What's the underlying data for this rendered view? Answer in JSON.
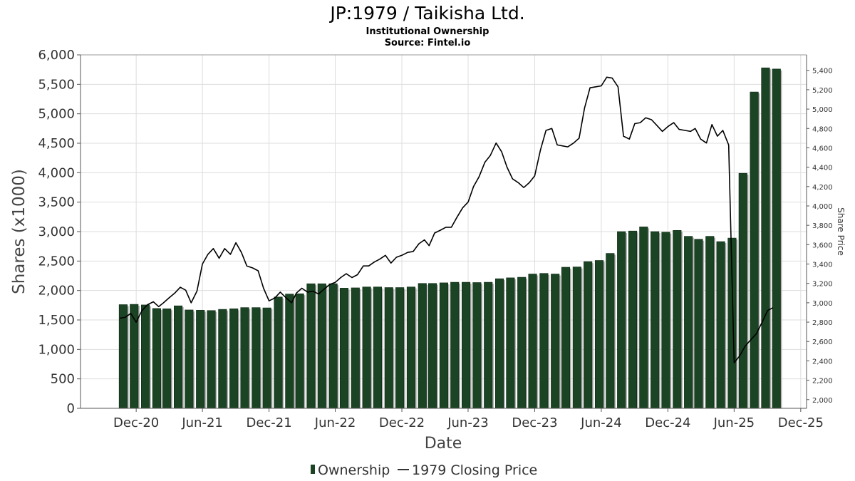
{
  "chart_data": {
    "type": "bar",
    "title": "JP:1979 / Taikisha Ltd.",
    "subtitle_lines": [
      "Institutional Ownership",
      "Source: Fintel.io"
    ],
    "xlabel": "Date",
    "ylabel": "Shares (x1000)",
    "y2label": "Share Price",
    "x_ticks": [
      "Dec-20",
      "Jun-21",
      "Dec-21",
      "Jun-22",
      "Dec-22",
      "Jun-23",
      "Dec-23",
      "Jun-24",
      "Dec-24",
      "Jun-25",
      "Dec-25"
    ],
    "y_ticks": [
      "0",
      "500",
      "1,000",
      "1,500",
      "2,000",
      "2,500",
      "3,000",
      "3,500",
      "4,000",
      "4,500",
      "5,000",
      "5,500",
      "6,000"
    ],
    "y2_ticks": [
      "2,000",
      "2,200",
      "2,400",
      "2,600",
      "2,800",
      "3,000",
      "3,200",
      "3,400",
      "3,600",
      "3,800",
      "4,000",
      "4,200",
      "4,400",
      "4,600",
      "4,800",
      "5,000",
      "5,200",
      "5,400"
    ],
    "ylim": [
      0,
      6000
    ],
    "y2lim": [
      1910,
      5560
    ],
    "grid": true,
    "legend_position": "bottom-center",
    "colors": {
      "bar": "#1a4423",
      "bar_edge": "#0c2613",
      "bar_shadow": "#b3b3b3",
      "line": "#000000",
      "grid": "#dddddd"
    },
    "legend": [
      {
        "label": "Ownership",
        "marker": "bar"
      },
      {
        "label": "1979 Closing Price",
        "marker": "line"
      }
    ],
    "series": [
      {
        "name": "Ownership",
        "kind": "bar",
        "axis": "left",
        "x": [
          "2020-10-31",
          "2020-11-30",
          "2020-12-31",
          "2021-01-31",
          "2021-02-28",
          "2021-03-31",
          "2021-04-30",
          "2021-05-31",
          "2021-06-30",
          "2021-07-31",
          "2021-08-31",
          "2021-09-30",
          "2021-10-31",
          "2021-11-30",
          "2021-12-31",
          "2022-01-31",
          "2022-02-28",
          "2022-03-31",
          "2022-04-30",
          "2022-05-31",
          "2022-06-30",
          "2022-07-31",
          "2022-08-31",
          "2022-09-30",
          "2022-10-31",
          "2022-11-30",
          "2022-12-31",
          "2023-01-31",
          "2023-02-28",
          "2023-03-31",
          "2023-04-30",
          "2023-05-31",
          "2023-06-30",
          "2023-07-31",
          "2023-08-31",
          "2023-09-30",
          "2023-10-31",
          "2023-11-30",
          "2023-12-31",
          "2024-01-31",
          "2024-02-29",
          "2024-03-31",
          "2024-04-30",
          "2024-05-31",
          "2024-06-30",
          "2024-07-31",
          "2024-08-31",
          "2024-09-30",
          "2024-10-31",
          "2024-11-30",
          "2024-12-31",
          "2025-01-31",
          "2025-02-28",
          "2025-03-31",
          "2025-04-30",
          "2025-05-31",
          "2025-06-30",
          "2025-07-31",
          "2025-08-31",
          "2025-09-30"
        ],
        "values": [
          1760,
          1765,
          1755,
          1695,
          1690,
          1740,
          1670,
          1665,
          1660,
          1680,
          1690,
          1710,
          1710,
          1705,
          1890,
          1940,
          1945,
          2115,
          2115,
          2115,
          2040,
          2045,
          2060,
          2060,
          2050,
          2050,
          2060,
          2120,
          2120,
          2130,
          2140,
          2140,
          2135,
          2140,
          2200,
          2215,
          2225,
          2280,
          2290,
          2280,
          2395,
          2400,
          2490,
          2510,
          2630,
          3000,
          3010,
          3080,
          3000,
          2990,
          3020,
          2920,
          2870,
          2920,
          2830,
          2890,
          3990,
          5370,
          5780,
          5760
        ]
      },
      {
        "name": "1979 Closing Price",
        "kind": "line",
        "axis": "right",
        "x": [
          "2020-10-31",
          "2020-11-15",
          "2020-11-30",
          "2020-12-15",
          "2020-12-31",
          "2021-01-15",
          "2021-01-31",
          "2021-02-15",
          "2021-02-28",
          "2021-03-15",
          "2021-03-31",
          "2021-04-15",
          "2021-04-30",
          "2021-05-15",
          "2021-05-31",
          "2021-06-15",
          "2021-06-30",
          "2021-07-15",
          "2021-07-31",
          "2021-08-15",
          "2021-08-31",
          "2021-09-15",
          "2021-09-30",
          "2021-10-15",
          "2021-10-31",
          "2021-11-15",
          "2021-11-30",
          "2021-12-15",
          "2021-12-31",
          "2022-01-15",
          "2022-01-31",
          "2022-02-15",
          "2022-02-28",
          "2022-03-15",
          "2022-03-31",
          "2022-04-15",
          "2022-04-30",
          "2022-05-15",
          "2022-05-31",
          "2022-06-15",
          "2022-06-30",
          "2022-07-15",
          "2022-07-31",
          "2022-08-15",
          "2022-08-31",
          "2022-09-15",
          "2022-09-30",
          "2022-10-15",
          "2022-10-31",
          "2022-11-15",
          "2022-11-30",
          "2022-12-15",
          "2022-12-31",
          "2023-01-15",
          "2023-01-31",
          "2023-02-15",
          "2023-02-28",
          "2023-03-15",
          "2023-03-31",
          "2023-04-15",
          "2023-04-30",
          "2023-05-15",
          "2023-05-31",
          "2023-06-15",
          "2023-06-30",
          "2023-07-15",
          "2023-07-31",
          "2023-08-15",
          "2023-08-31",
          "2023-09-15",
          "2023-09-30",
          "2023-10-15",
          "2023-10-31",
          "2023-11-15",
          "2023-11-30",
          "2023-12-15",
          "2023-12-31",
          "2024-01-15",
          "2024-01-31",
          "2024-02-15",
          "2024-02-29",
          "2024-03-15",
          "2024-03-31",
          "2024-04-15",
          "2024-04-30",
          "2024-05-15",
          "2024-05-31",
          "2024-06-15",
          "2024-06-30",
          "2024-07-15",
          "2024-07-31",
          "2024-08-15",
          "2024-08-31",
          "2024-09-15",
          "2024-09-30",
          "2024-10-15",
          "2024-10-31",
          "2024-11-15",
          "2024-11-30",
          "2024-12-15",
          "2024-12-31",
          "2025-01-15",
          "2025-01-31",
          "2025-02-15",
          "2025-02-28",
          "2025-03-15",
          "2025-03-31",
          "2025-04-15",
          "2025-04-30",
          "2025-05-15",
          "2025-05-31",
          "2025-06-15",
          "2025-06-30",
          "2025-07-15",
          "2025-07-31",
          "2025-08-15",
          "2025-08-31",
          "2025-09-15",
          "2025-09-30"
        ],
        "values": [
          2840,
          2850,
          2890,
          2800,
          2920,
          2980,
          3010,
          2960,
          3000,
          3050,
          3100,
          3160,
          3130,
          3000,
          3120,
          3400,
          3500,
          3560,
          3460,
          3560,
          3500,
          3620,
          3520,
          3380,
          3360,
          3330,
          3150,
          3020,
          3050,
          3110,
          3050,
          3000,
          3100,
          3150,
          3110,
          3120,
          3090,
          3140,
          3190,
          3210,
          3260,
          3300,
          3260,
          3290,
          3380,
          3380,
          3420,
          3450,
          3490,
          3410,
          3470,
          3490,
          3520,
          3530,
          3610,
          3650,
          3590,
          3720,
          3750,
          3780,
          3780,
          3880,
          3980,
          4040,
          4200,
          4300,
          4450,
          4520,
          4650,
          4560,
          4400,
          4280,
          4240,
          4190,
          4240,
          4310,
          4580,
          4780,
          4800,
          4630,
          4620,
          4610,
          4650,
          4700,
          5010,
          5220,
          5230,
          5240,
          5330,
          5320,
          5230,
          4720,
          4690,
          4850,
          4860,
          4910,
          4890,
          4830,
          4770,
          4820,
          4860,
          4790,
          4780,
          4770,
          4800,
          4690,
          4650,
          4840,
          4720,
          4780,
          4630,
          2380,
          2450,
          2550,
          2620,
          2680,
          2800,
          2920,
          2950
        ]
      }
    ]
  }
}
